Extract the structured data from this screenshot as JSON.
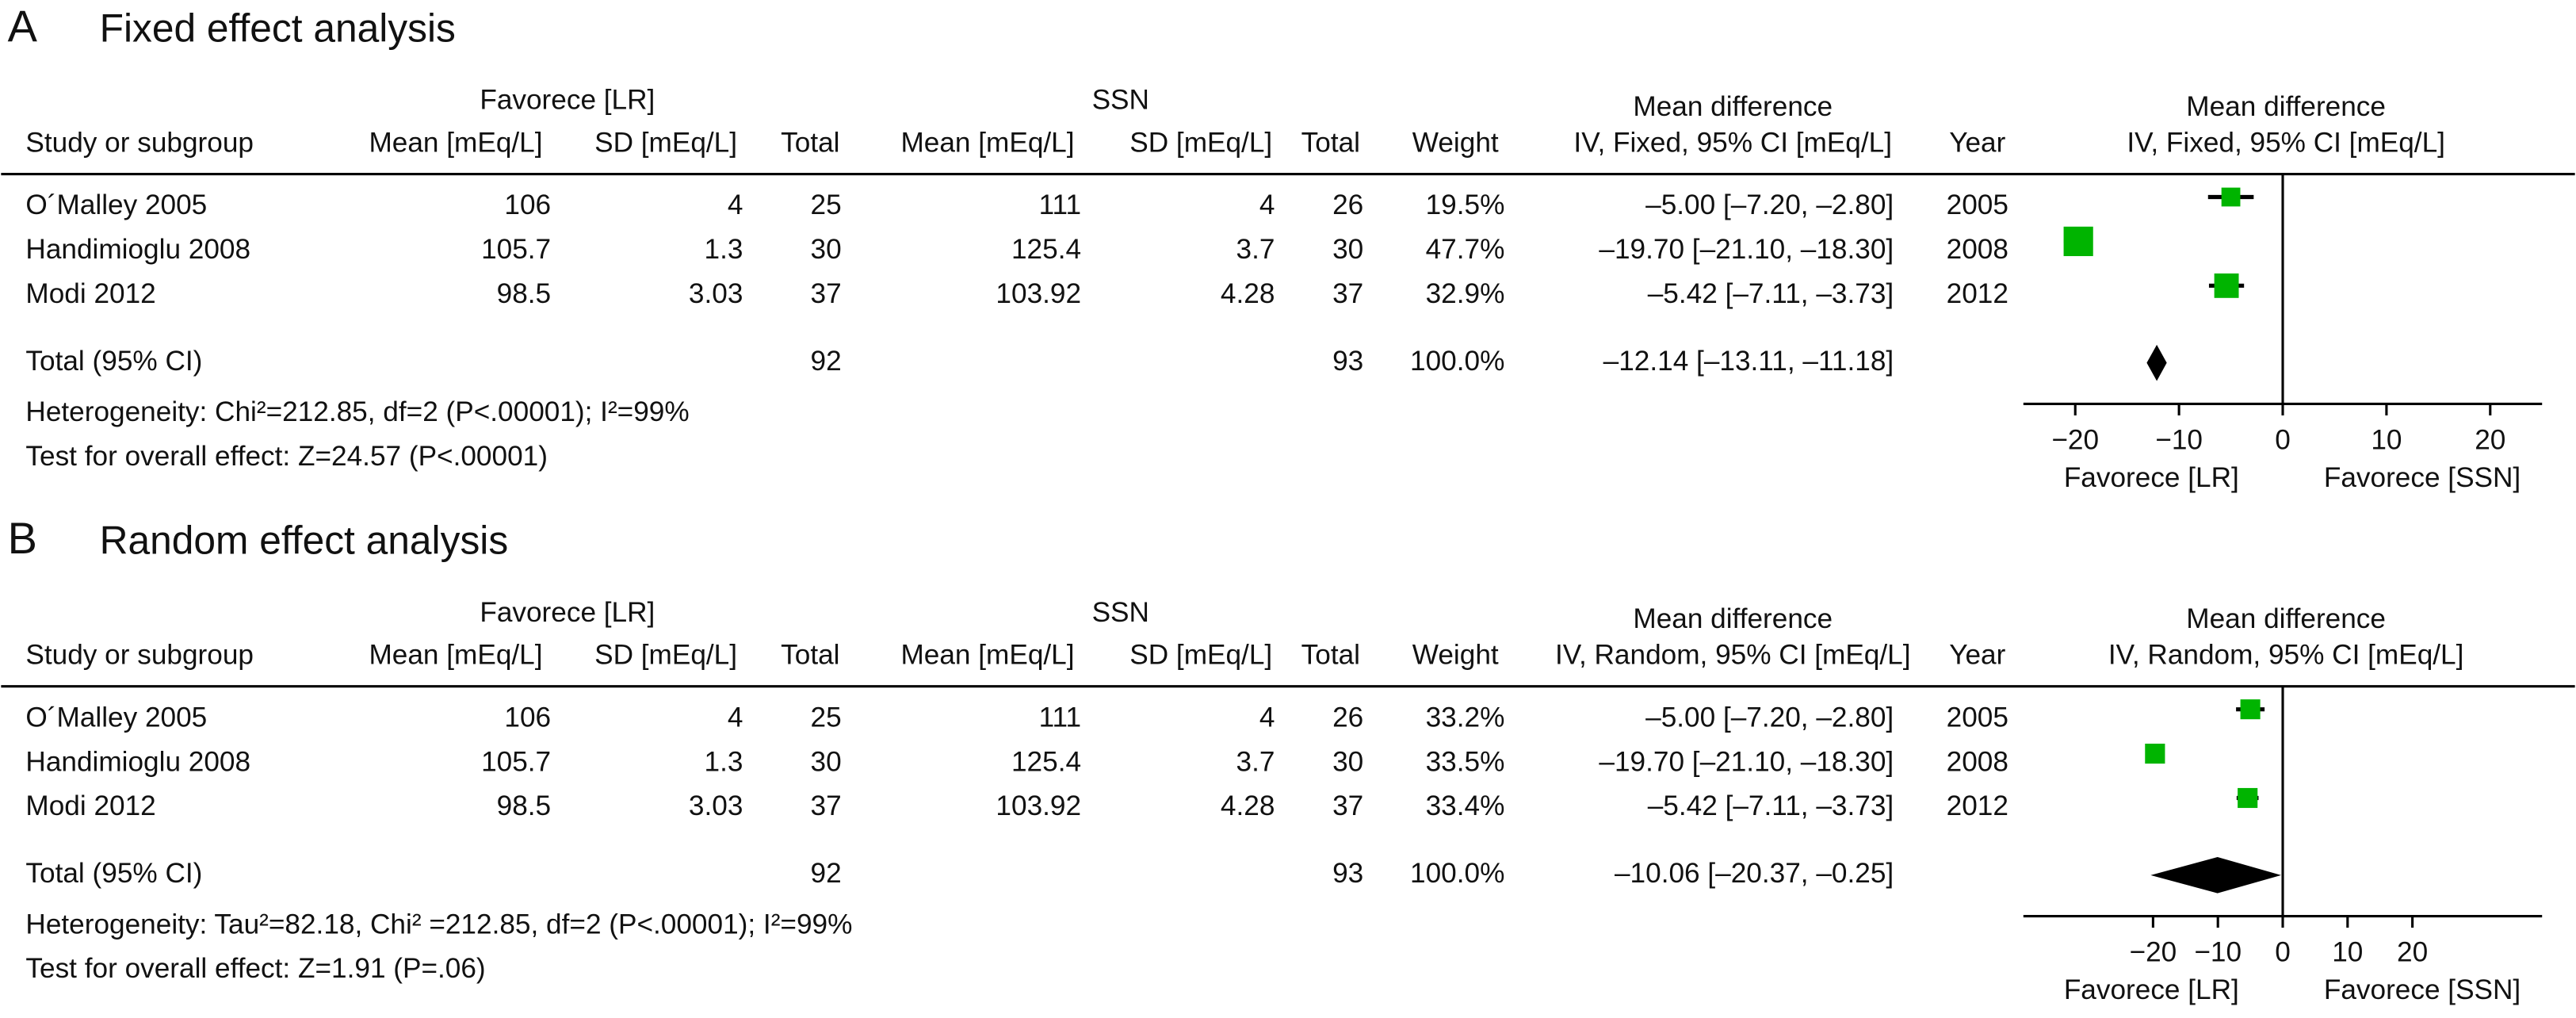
{
  "chart_data": [
    {
      "type": "forest",
      "panel": "A",
      "title": "Fixed effect analysis",
      "group_headers": [
        "Favorece [LR]",
        "SSN",
        "Mean difference"
      ],
      "columns": [
        "Study or subgroup",
        "Mean [mEq/L]",
        "SD [mEq/L]",
        "Total",
        "Mean [mEq/L]",
        "SD [mEq/L]",
        "Total",
        "Weight",
        "IV, Fixed, 95% CI [mEq/L]",
        "Year"
      ],
      "rows": [
        [
          "O´Malley 2005",
          "106",
          "4",
          "25",
          "111",
          "4",
          "26",
          "19.5%",
          "–5.00 [–7.20, –2.80]",
          "2005"
        ],
        [
          "Handimioglu 2008",
          "105.7",
          "1.3",
          "30",
          "125.4",
          "3.7",
          "30",
          "47.7%",
          "–19.70 [–21.10, –18.30]",
          "2008"
        ],
        [
          "Modi 2012",
          "98.5",
          "3.03",
          "37",
          "103.92",
          "4.28",
          "37",
          "32.9%",
          "–5.42 [–7.11, –3.73]",
          "2012"
        ]
      ],
      "total_row": {
        "label": "Total (95% CI)",
        "total_lr": "92",
        "total_ssn": "93",
        "weight": "100.0%",
        "ci": "–12.14 [–13.11, –11.18]"
      },
      "heterogeneity": "Heterogeneity: Chi²=212.85, df=2 (P<.00001); I²=99%",
      "overall_effect": "Test for overall effect: Z=24.57 (P<.00001)",
      "plot_header": [
        "Mean difference",
        "IV, Fixed, 95% CI [mEq/L]"
      ],
      "estimates": [
        -5.0,
        -19.7,
        -5.42
      ],
      "ci_lower": [
        -7.2,
        -21.1,
        -7.11
      ],
      "ci_upper": [
        -2.8,
        -18.3,
        -3.73
      ],
      "weights": [
        19.5,
        47.7,
        32.9
      ],
      "total": {
        "estimate": -12.14,
        "lower": -13.11,
        "upper": -11.18
      },
      "color": "#00b400",
      "xlim": [
        -25,
        25
      ],
      "xticks": [
        {
          "value": -20,
          "label": "−20"
        },
        {
          "value": -10,
          "label": "−10"
        },
        0,
        10,
        20
      ],
      "x_labels": [
        "Favorece [LR]",
        "Favorece [SSN]"
      ]
    },
    {
      "type": "forest",
      "panel": "B",
      "title": "Random effect analysis",
      "group_headers": [
        "Favorece [LR]",
        "SSN",
        "Mean difference"
      ],
      "columns": [
        "Study or subgroup",
        "Mean [mEq/L]",
        "SD [mEq/L]",
        "Total",
        "Mean [mEq/L]",
        "SD [mEq/L]",
        "Total",
        "Weight",
        "IV, Random, 95% CI [mEq/L]",
        "Year"
      ],
      "rows": [
        [
          "O´Malley 2005",
          "106",
          "4",
          "25",
          "111",
          "4",
          "26",
          "33.2%",
          "–5.00 [–7.20, –2.80]",
          "2005"
        ],
        [
          "Handimioglu 2008",
          "105.7",
          "1.3",
          "30",
          "125.4",
          "3.7",
          "30",
          "33.5%",
          "–19.70 [–21.10, –18.30]",
          "2008"
        ],
        [
          "Modi 2012",
          "98.5",
          "3.03",
          "37",
          "103.92",
          "4.28",
          "37",
          "33.4%",
          "–5.42 [–7.11, –3.73]",
          "2012"
        ]
      ],
      "total_row": {
        "label": "Total (95% CI)",
        "total_lr": "92",
        "total_ssn": "93",
        "weight": "100.0%",
        "ci": "–10.06 [–20.37, –0.25]"
      },
      "heterogeneity": "Heterogeneity: Tau²=82.18, Chi² =212.85, df=2 (P<.00001); I²=99%",
      "overall_effect": "Test for overall effect: Z=1.91 (P=.06)",
      "plot_header": [
        "Mean difference",
        "IV, Random, 95% CI [mEq/L]"
      ],
      "estimates": [
        -5.0,
        -19.7,
        -5.42
      ],
      "ci_lower": [
        -7.2,
        -21.1,
        -7.11
      ],
      "ci_upper": [
        -2.8,
        -18.3,
        -3.73
      ],
      "weights": [
        33.2,
        33.5,
        33.4
      ],
      "total": {
        "estimate": -10.06,
        "lower": -20.37,
        "upper": -0.25
      },
      "color": "#00b400",
      "xlim": [
        -40,
        40
      ],
      "xticks": [
        {
          "value": -20,
          "label": "−20"
        },
        {
          "value": -10,
          "label": "−10"
        },
        0,
        10,
        20
      ],
      "x_labels": [
        "Favorece [LR]",
        "Favorece [SSN]"
      ]
    }
  ]
}
